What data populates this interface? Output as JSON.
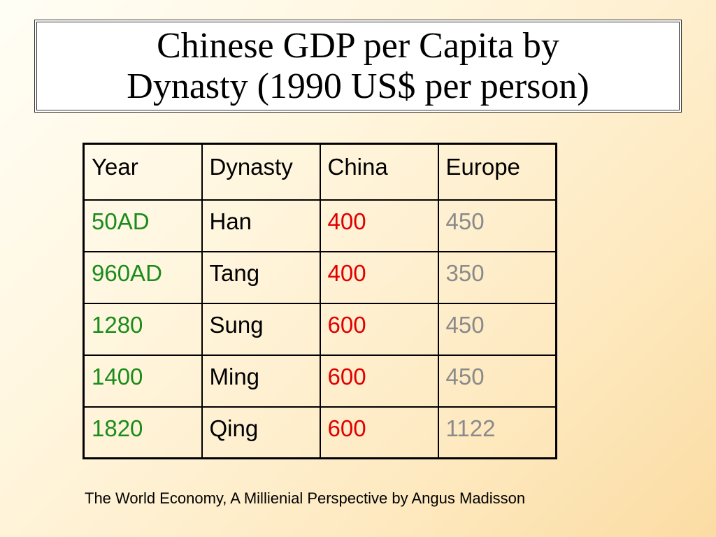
{
  "title": {
    "line1": "Chinese GDP per Capita by",
    "line2": "Dynasty (1990 US$ per person)"
  },
  "table": {
    "headers": [
      "Year",
      "Dynasty",
      "China",
      "Europe"
    ],
    "rows": [
      {
        "year": "50AD",
        "dynasty": "Han",
        "china": "400",
        "europe": "450"
      },
      {
        "year": "960AD",
        "dynasty": "Tang",
        "china": "400",
        "europe": "350"
      },
      {
        "year": "1280",
        "dynasty": "Sung",
        "china": "600",
        "europe": "450"
      },
      {
        "year": "1400",
        "dynasty": "Ming",
        "china": "600",
        "europe": "450"
      },
      {
        "year": "1820",
        "dynasty": "Qing",
        "china": "600",
        "europe": "1122"
      }
    ]
  },
  "source": "The World Economy, A Millienial Perspective by Angus Madisson",
  "colors": {
    "year": "#1a8c1a",
    "china": "#e00000",
    "europe": "#8a8a8a"
  }
}
